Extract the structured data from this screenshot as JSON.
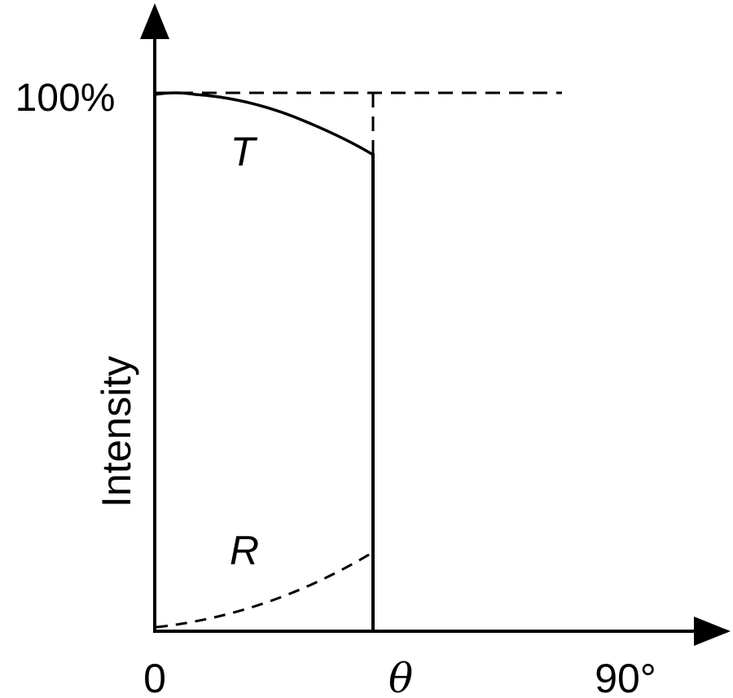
{
  "diagram": {
    "y_axis_label": "Intensity",
    "y_tick_label": "100%",
    "x_tick_labels": {
      "origin": "0",
      "critical": "θ",
      "end": "90°"
    },
    "curves": {
      "transmitted": "T",
      "reflected": "R"
    }
  }
}
